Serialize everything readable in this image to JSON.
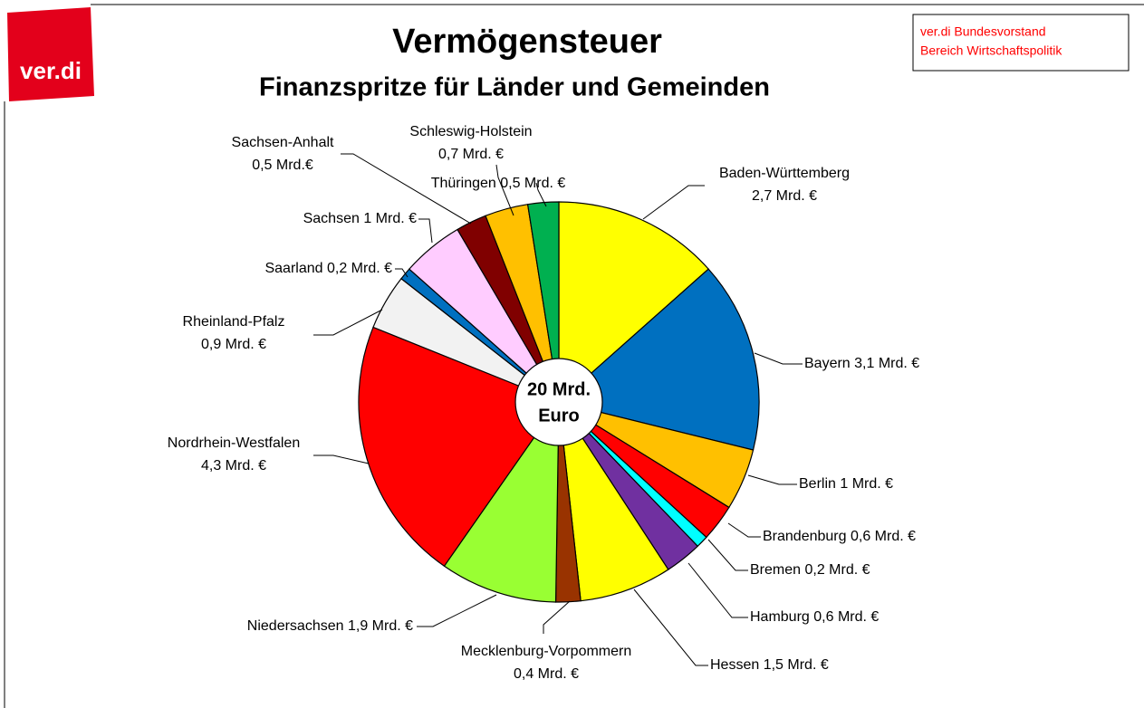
{
  "logo": "ver.di",
  "source_box": [
    "ver.di Bundesvorstand",
    "Bereich Wirtschaftspolitik"
  ],
  "chart_data": {
    "type": "pie",
    "title": "Vermögensteuer",
    "subtitle": "Finanzspritze für Länder und Gemeinden",
    "center_label": [
      "20 Mrd.",
      "Euro"
    ],
    "categories": [
      "Baden-Württemberg",
      "Bayern",
      "Berlin",
      "Brandenburg",
      "Bremen",
      "Hamburg",
      "Hessen",
      "Mecklenburg-Vorpommern",
      "Niedersachsen",
      "Nordrhein-Westfalen",
      "Rheinland-Pfalz",
      "Saarland",
      "Sachsen",
      "Sachsen-Anhalt",
      "Schleswig-Holstein",
      "Thüringen"
    ],
    "values": [
      2.7,
      3.1,
      1,
      0.6,
      0.2,
      0.6,
      1.5,
      0.4,
      1.9,
      4.3,
      0.9,
      0.2,
      1,
      0.5,
      0.7,
      0.5
    ],
    "value_labels": [
      "2,7 Mrd. €",
      "3,1 Mrd. €",
      "1 Mrd. €",
      "0,6 Mrd. €",
      "0,2 Mrd. €",
      "0,6 Mrd. €",
      "1,5 Mrd. €",
      "0,4 Mrd. €",
      "1,9 Mrd. €",
      "4,3 Mrd. €",
      "0,9 Mrd. €",
      "0,2 Mrd. €",
      "1 Mrd. €",
      "0,5 Mrd.€",
      "0,7 Mrd. €",
      "0,5 Mrd. €"
    ],
    "colors": [
      "#ffff00",
      "#0070c0",
      "#ffc000",
      "#ff0000",
      "#00ffff",
      "#7030a0",
      "#ffff00",
      "#993300",
      "#99ff33",
      "#ff0000",
      "#f2f2f2",
      "#0070c0",
      "#ffccff",
      "#800000",
      "#ffc000",
      "#00b050"
    ]
  }
}
